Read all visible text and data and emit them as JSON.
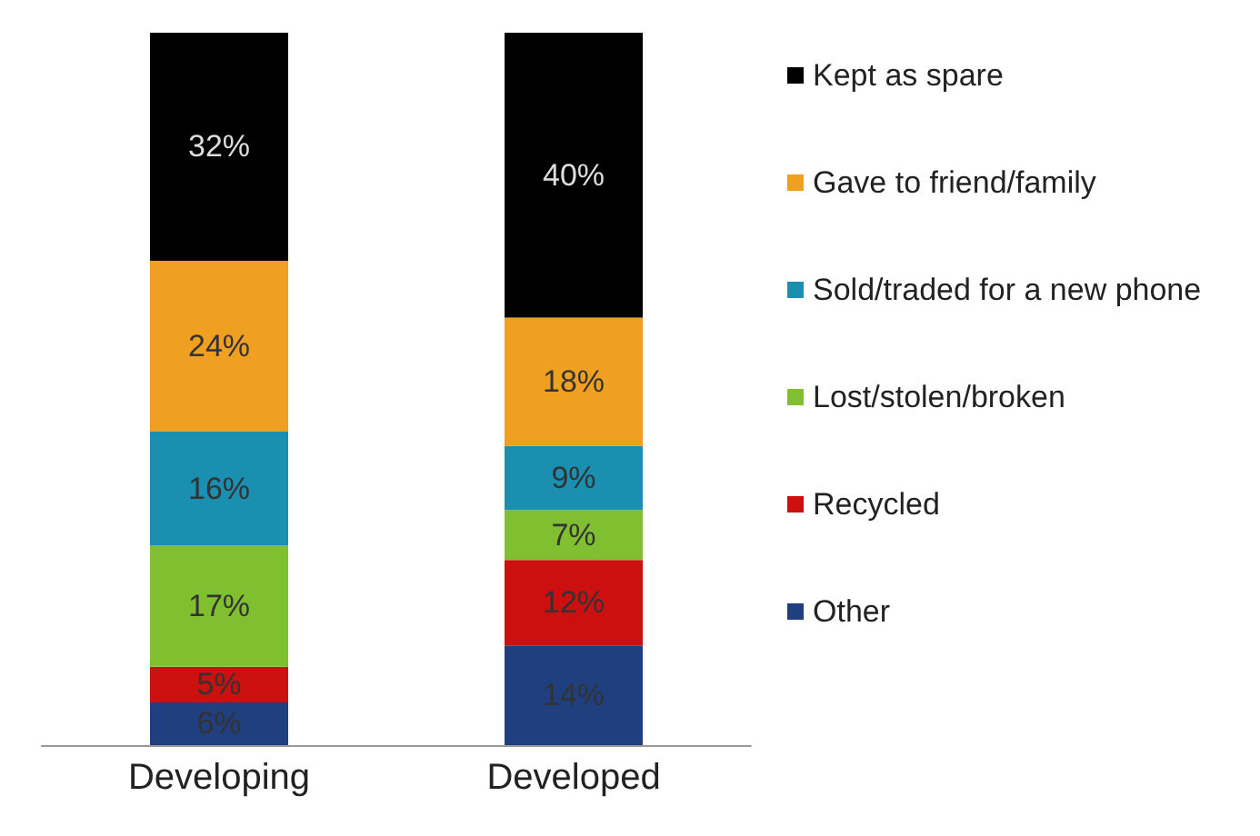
{
  "chart_data": {
    "type": "bar",
    "stacked": true,
    "categories": [
      "Developing",
      "Developed"
    ],
    "legend": "right",
    "series": [
      {
        "name": "Other",
        "color": "#1f3f7f",
        "values": [
          6,
          14
        ],
        "value_labels": [
          "6%",
          "14%"
        ]
      },
      {
        "name": "Recycled",
        "color": "#cc1010",
        "values": [
          5,
          12
        ],
        "value_labels": [
          "5%",
          "12%"
        ]
      },
      {
        "name": "Lost/stolen/broken",
        "color": "#80c030",
        "values": [
          17,
          7
        ],
        "value_labels": [
          "17%",
          "7%"
        ]
      },
      {
        "name": "Sold/traded for a new phone",
        "color": "#1a8fb0",
        "values": [
          16,
          9
        ],
        "value_labels": [
          "16%",
          "9%"
        ]
      },
      {
        "name": "Gave to friend/family",
        "color": "#f0a020",
        "values": [
          24,
          18
        ],
        "value_labels": [
          "24%",
          "18%"
        ]
      },
      {
        "name": "Kept as spare",
        "color": "#000000",
        "values": [
          32,
          40
        ],
        "value_labels": [
          "32%",
          "40%"
        ]
      }
    ]
  }
}
